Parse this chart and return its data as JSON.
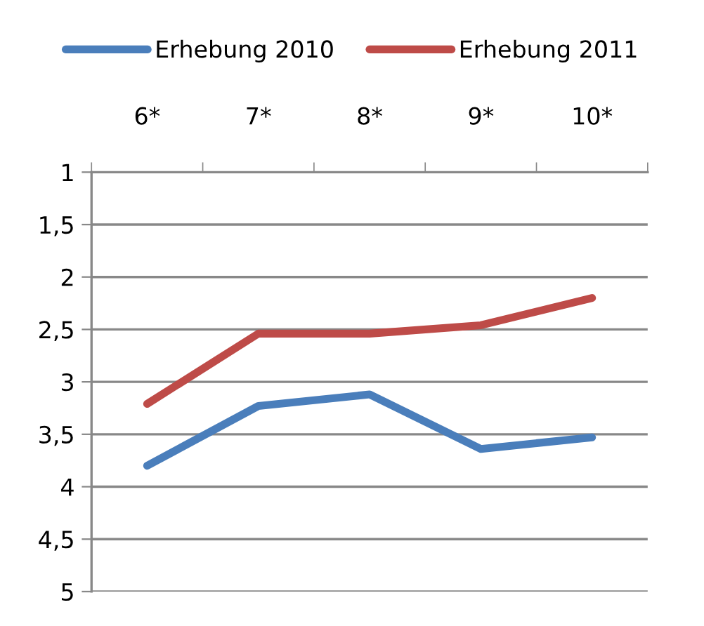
{
  "chart_data": {
    "type": "line",
    "categories": [
      "6*",
      "7*",
      "8*",
      "9*",
      "10*"
    ],
    "series": [
      {
        "name": "Erhebung 2010",
        "color": "#4a7ebb",
        "values": [
          3.8,
          3.23,
          3.12,
          3.64,
          3.53
        ]
      },
      {
        "name": "Erhebung 2011",
        "color": "#be4b48",
        "values": [
          3.21,
          2.54,
          2.54,
          2.46,
          2.2
        ]
      }
    ],
    "ylim": [
      5,
      1
    ],
    "yticks": [
      1,
      {
        "value": 1.5,
        "label": "1,5"
      },
      2,
      {
        "value": 2.5,
        "label": "2,5"
      },
      3,
      {
        "value": 3.5,
        "label": "3,5"
      },
      4,
      {
        "value": 4.5,
        "label": "4,5"
      },
      5
    ],
    "grid": "y",
    "legend": "top",
    "marker": "none",
    "line_style": "solid"
  }
}
